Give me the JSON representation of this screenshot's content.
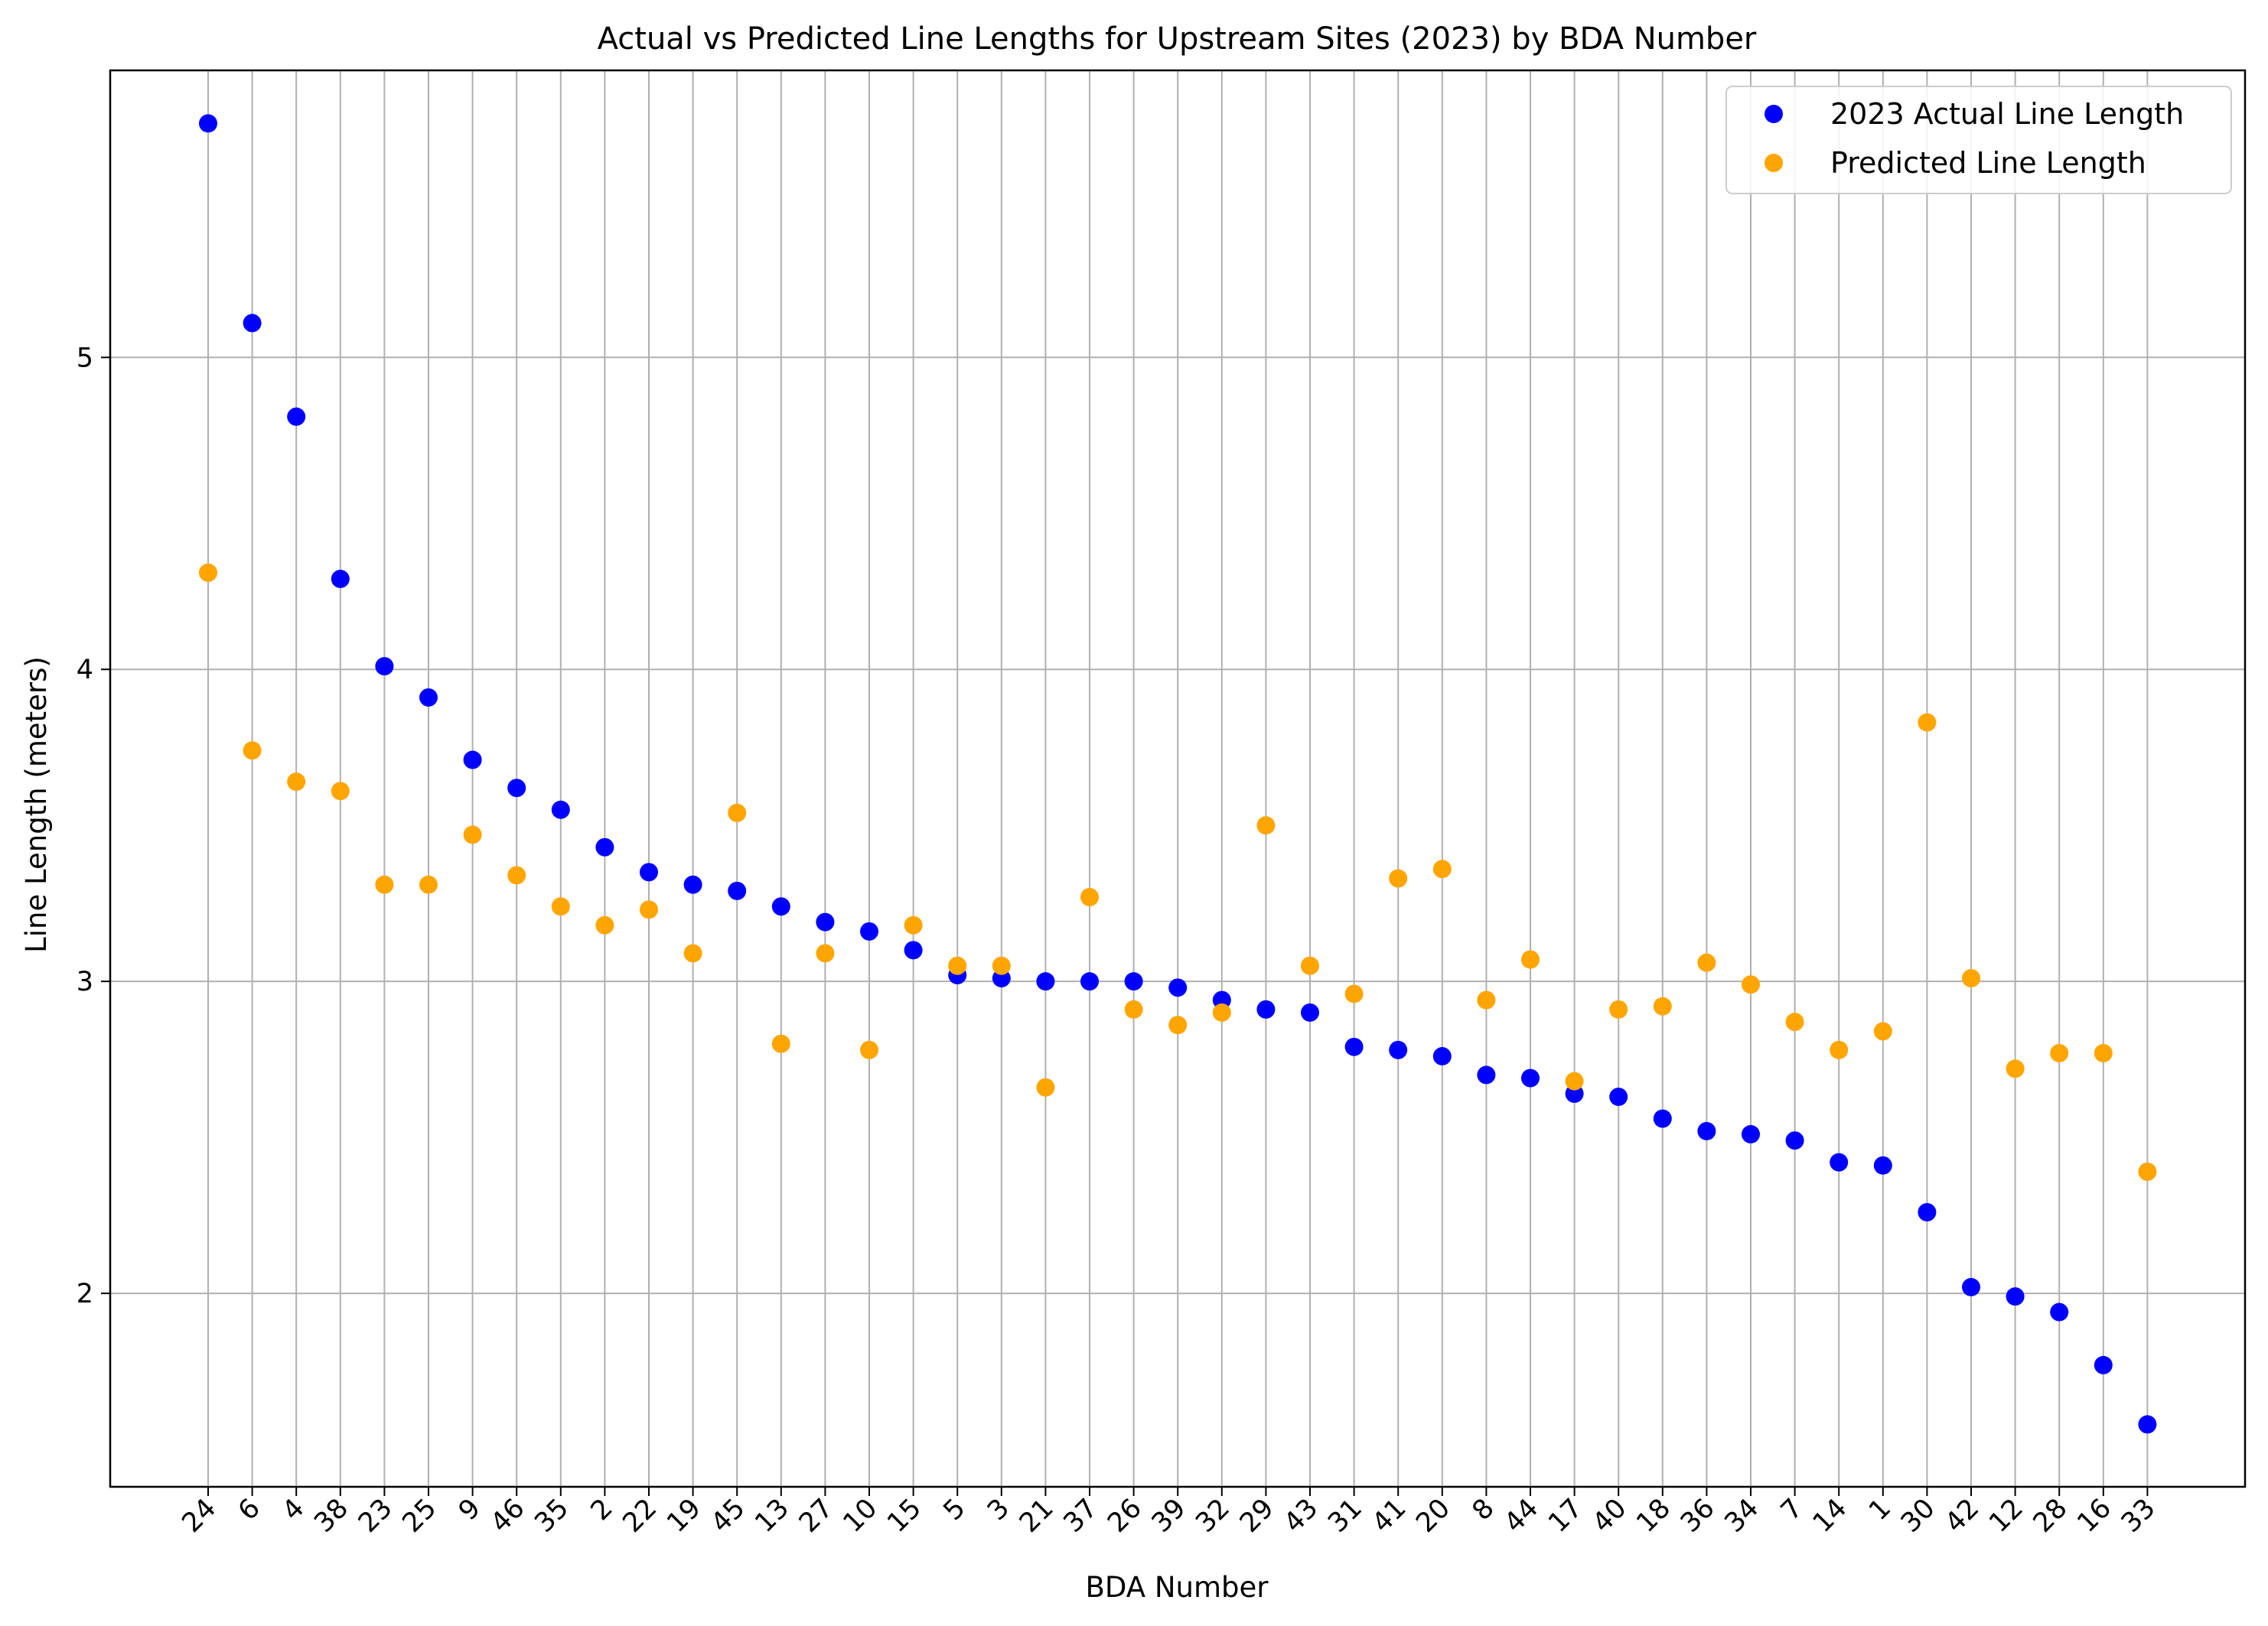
{
  "chart_data": {
    "type": "scatter",
    "title": "Actual vs Predicted Line Lengths for Upstream Sites (2023) by BDA Number",
    "xlabel": "BDA Number",
    "ylabel": "Line Length (meters)",
    "categories": [
      "24",
      "6",
      "4",
      "38",
      "23",
      "25",
      "9",
      "46",
      "35",
      "2",
      "22",
      "19",
      "45",
      "13",
      "27",
      "10",
      "15",
      "5",
      "3",
      "21",
      "37",
      "26",
      "39",
      "32",
      "29",
      "43",
      "31",
      "41",
      "20",
      "8",
      "44",
      "17",
      "40",
      "18",
      "36",
      "34",
      "7",
      "14",
      "1",
      "30",
      "42",
      "12",
      "28",
      "16",
      "33"
    ],
    "yticks": [
      2,
      3,
      4,
      5
    ],
    "ylim": [
      1.38,
      5.92
    ],
    "grid": true,
    "legend_position": "top-right",
    "series": [
      {
        "name": "2023 Actual Line Length",
        "color": "#0000ff",
        "values": [
          5.75,
          5.11,
          4.81,
          4.29,
          4.01,
          3.91,
          3.71,
          3.62,
          3.55,
          3.43,
          3.35,
          3.31,
          3.29,
          3.24,
          3.19,
          3.16,
          3.1,
          3.02,
          3.01,
          3.0,
          3.0,
          3.0,
          2.98,
          2.94,
          2.91,
          2.9,
          2.79,
          2.78,
          2.76,
          2.7,
          2.69,
          2.64,
          2.63,
          2.56,
          2.52,
          2.51,
          2.49,
          2.42,
          2.41,
          2.26,
          2.02,
          1.99,
          1.94,
          1.77,
          1.58
        ]
      },
      {
        "name": "Predicted Line Length",
        "color": "#ffa500",
        "values": [
          4.31,
          3.74,
          3.64,
          3.61,
          3.31,
          3.31,
          3.47,
          3.34,
          3.24,
          3.18,
          3.23,
          3.09,
          3.54,
          2.8,
          3.09,
          2.78,
          3.18,
          3.05,
          3.05,
          2.66,
          3.27,
          2.91,
          2.86,
          2.9,
          3.5,
          3.05,
          2.96,
          3.33,
          3.36,
          2.94,
          3.07,
          2.68,
          2.91,
          2.92,
          3.06,
          2.99,
          2.87,
          2.78,
          2.84,
          3.83,
          3.01,
          2.72,
          2.77,
          2.77,
          2.39
        ]
      }
    ]
  }
}
